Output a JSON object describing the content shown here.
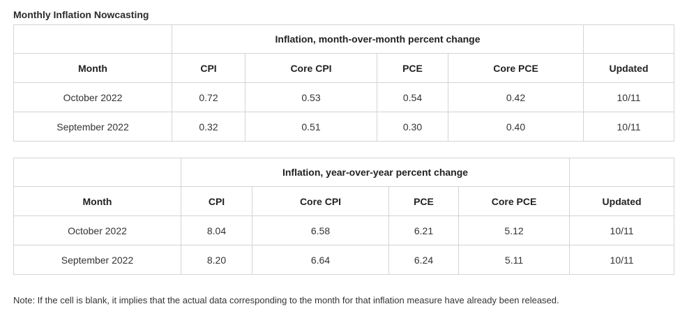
{
  "title": "Monthly Inflation Nowcasting",
  "tables": [
    {
      "group_header": "Inflation, month-over-month percent change",
      "columns": [
        "Month",
        "CPI",
        "Core CPI",
        "PCE",
        "Core PCE",
        "Updated"
      ],
      "rows": [
        [
          "October 2022",
          "0.72",
          "0.53",
          "0.54",
          "0.42",
          "10/11"
        ],
        [
          "September 2022",
          "0.32",
          "0.51",
          "0.30",
          "0.40",
          "10/11"
        ]
      ]
    },
    {
      "group_header": "Inflation, year-over-year percent change",
      "columns": [
        "Month",
        "CPI",
        "Core CPI",
        "PCE",
        "Core PCE",
        "Updated"
      ],
      "rows": [
        [
          "October 2022",
          "8.04",
          "6.58",
          "6.21",
          "5.12",
          "10/11"
        ],
        [
          "September 2022",
          "8.20",
          "6.64",
          "6.24",
          "5.11",
          "10/11"
        ]
      ]
    }
  ],
  "note": "Note: If the cell is blank, it implies that the actual data corresponding to the month for that inflation measure have already been released."
}
